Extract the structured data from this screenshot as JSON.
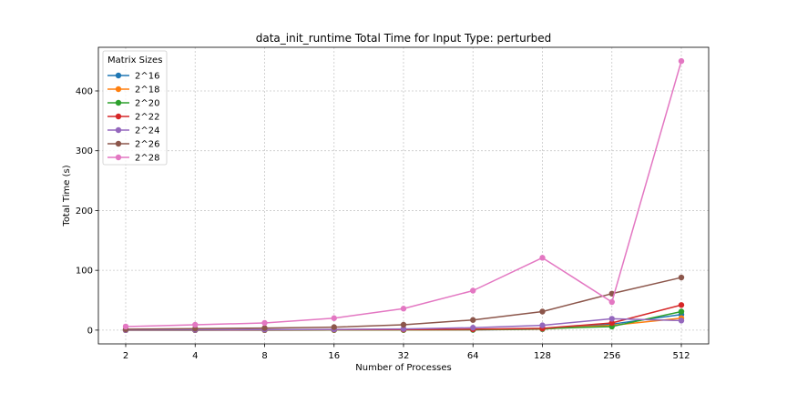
{
  "chart_data": {
    "type": "line",
    "title": "data_init_runtime Total Time for Input Type: perturbed",
    "xlabel": "Number of Processes",
    "ylabel": "Total Time (s)",
    "categories": [
      "2",
      "4",
      "8",
      "16",
      "32",
      "64",
      "128",
      "256",
      "512"
    ],
    "x_scale": "log2",
    "ylim": [
      -23,
      473
    ],
    "yticks": [
      0,
      100,
      200,
      300,
      400
    ],
    "grid": true,
    "legend": {
      "title": "Matrix Sizes",
      "position": "top-left"
    },
    "series": [
      {
        "name": "2^16",
        "color": "#1f77b4",
        "values": [
          0.1,
          0.1,
          0.1,
          0.2,
          0.3,
          0.4,
          1.5,
          10.0,
          26.0
        ]
      },
      {
        "name": "2^18",
        "color": "#ff7f0e",
        "values": [
          0.1,
          0.1,
          0.1,
          0.2,
          0.4,
          0.6,
          2.0,
          8.0,
          20.0
        ]
      },
      {
        "name": "2^20",
        "color": "#2ca02c",
        "values": [
          0.1,
          0.1,
          0.2,
          0.3,
          0.5,
          0.8,
          2.5,
          6.0,
          31.0
        ]
      },
      {
        "name": "2^22",
        "color": "#d62728",
        "values": [
          0.2,
          0.3,
          0.5,
          0.7,
          1.0,
          1.5,
          3.0,
          12.0,
          42.0
        ]
      },
      {
        "name": "2^24",
        "color": "#9467bd",
        "values": [
          0.3,
          0.5,
          0.8,
          1.2,
          2.0,
          4.0,
          8.0,
          19.0,
          16.0
        ]
      },
      {
        "name": "2^26",
        "color": "#8c564b",
        "values": [
          1.5,
          2.5,
          3.5,
          5.0,
          9.0,
          17.0,
          31.0,
          61.0,
          88.0
        ]
      },
      {
        "name": "2^28",
        "color": "#e377c2",
        "values": [
          6.0,
          9.0,
          12.0,
          20.0,
          36.0,
          66.0,
          121.0,
          47.0,
          450.0
        ]
      }
    ]
  }
}
